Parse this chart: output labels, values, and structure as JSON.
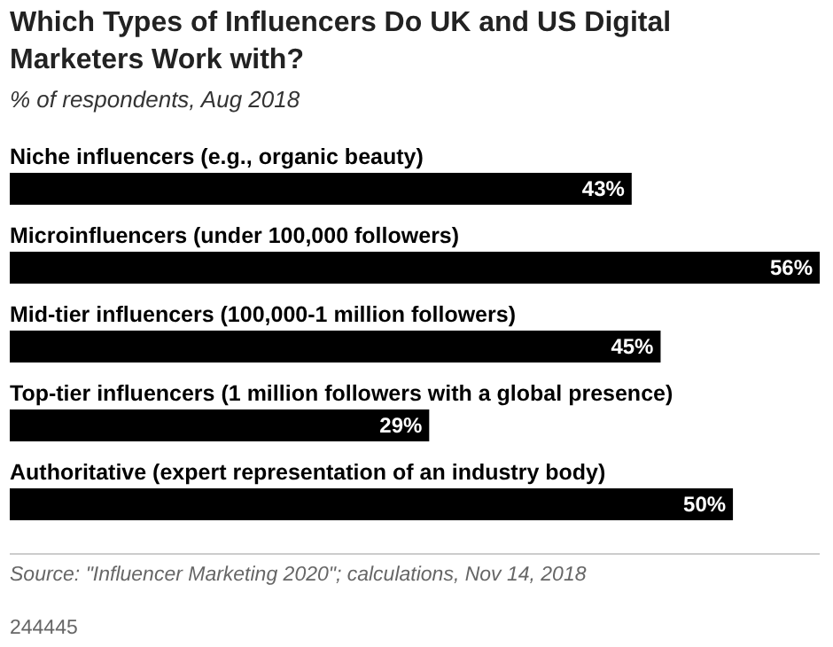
{
  "chart_data": {
    "type": "bar",
    "orientation": "horizontal",
    "title": "Which Types of Influencers Do UK and US Digital\nMarketers Work with?",
    "subtitle": "% of respondents, Aug 2018",
    "categories": [
      "Niche influencers (e.g., organic beauty)",
      "Microinfluencers (under 100,000 followers)",
      "Mid-tier influencers (100,000-1 million followers)",
      "Top-tier influencers (1 million followers with a global presence)",
      "Authoritative (expert representation of an industry body)"
    ],
    "values": [
      43,
      56,
      45,
      29,
      50
    ],
    "color": "#000000",
    "data_labels": true,
    "value_labels": [
      "43%",
      "56%",
      "45%",
      "29%",
      "50%"
    ],
    "annotations": [
      "Source: \"Influencer Marketing 2020\"; calculations, Nov 14, 2018",
      "244445"
    ]
  }
}
